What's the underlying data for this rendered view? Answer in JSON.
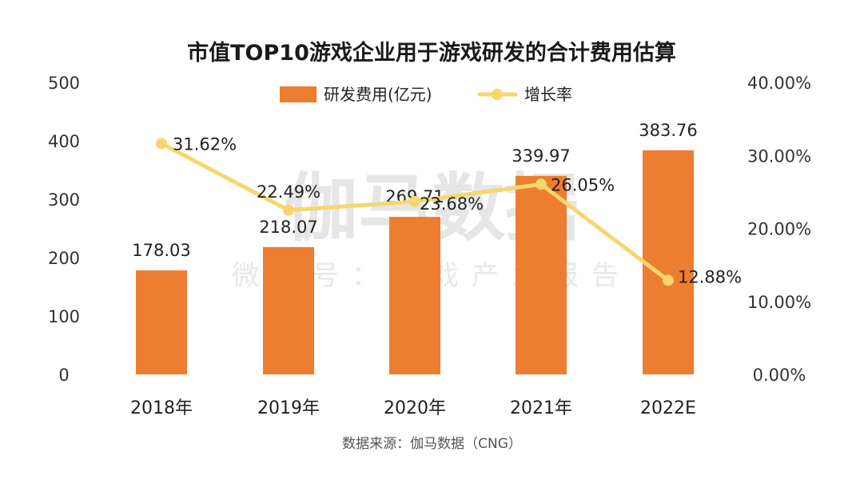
{
  "chart_data": {
    "type": "bar",
    "title": "市值TOP10游戏企业用于游戏研发的合计费用估算",
    "categories": [
      "2018年",
      "2019年",
      "2020年",
      "2021年",
      "2022E"
    ],
    "series": [
      {
        "name": "研发费用(亿元)",
        "type": "bar",
        "axis": "left",
        "values": [
          178.03,
          218.07,
          269.71,
          339.97,
          383.76
        ],
        "labels": [
          "178.03",
          "218.07",
          "269.71",
          "339.97",
          "383.76"
        ]
      },
      {
        "name": "增长率",
        "type": "line",
        "axis": "right",
        "values": [
          31.62,
          22.49,
          23.68,
          26.05,
          12.88
        ],
        "labels": [
          "31.62%",
          "22.49%",
          "23.68%",
          "26.05%",
          "12.88%"
        ]
      }
    ],
    "y_left": {
      "min": 0,
      "max": 500,
      "ticks": [
        0,
        100,
        200,
        300,
        400,
        500
      ],
      "tick_labels": [
        "0",
        "100",
        "200",
        "300",
        "400",
        "500"
      ]
    },
    "y_right": {
      "min": 0,
      "max": 40,
      "ticks": [
        0,
        10,
        20,
        30,
        40
      ],
      "tick_labels": [
        "0.00%",
        "10.00%",
        "20.00%",
        "30.00%",
        "40.00%"
      ]
    },
    "grid": false,
    "legend": "top-center"
  },
  "watermark": {
    "main": "伽马数据",
    "sub": "微信号：游戏产业报告"
  },
  "source": "数据来源：伽马数据（CNG）",
  "colors": {
    "bar": "#ED7D31",
    "line": "#F5D76E",
    "marker": "#F5D76E"
  }
}
